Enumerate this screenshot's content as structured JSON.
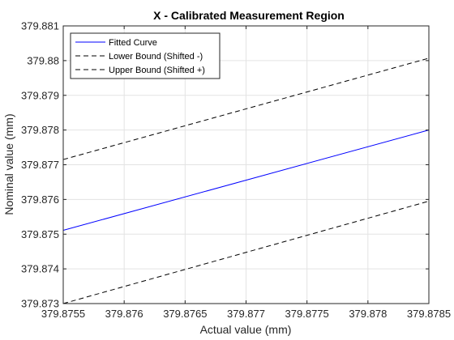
{
  "chart_data": {
    "type": "line",
    "title": "X - Calibrated Measurement Region",
    "xlabel": "Actual value (mm)",
    "ylabel": "Nominal value (mm)",
    "xlim": [
      379.8755,
      379.8785
    ],
    "ylim": [
      379.873,
      379.881
    ],
    "xticks": [
      379.8755,
      379.876,
      379.8765,
      379.877,
      379.8775,
      379.878,
      379.8785
    ],
    "xtick_labels": [
      "379.8755",
      "379.876",
      "379.8765",
      "379.877",
      "379.8775",
      "379.878",
      "379.8785"
    ],
    "yticks": [
      379.873,
      379.874,
      379.875,
      379.876,
      379.877,
      379.878,
      379.879,
      379.88,
      379.881
    ],
    "ytick_labels": [
      "379.873",
      "379.874",
      "379.875",
      "379.876",
      "379.877",
      "379.878",
      "379.879",
      "379.88",
      "379.881"
    ],
    "grid": true,
    "legend_position": "top-left",
    "series": [
      {
        "name": "Fitted Curve",
        "color": "#0000ff",
        "style": "solid",
        "x": [
          379.8755,
          379.8785
        ],
        "y": [
          379.87511,
          379.878
        ]
      },
      {
        "name": "Lower Bound (Shifted -)",
        "color": "#000000",
        "style": "dashed",
        "x": [
          379.8755,
          379.8785
        ],
        "y": [
          379.873,
          379.87595
        ]
      },
      {
        "name": "Upper Bound (Shifted +)",
        "color": "#000000",
        "style": "dashed",
        "x": [
          379.8755,
          379.8785
        ],
        "y": [
          379.87715,
          379.88007
        ]
      }
    ]
  }
}
